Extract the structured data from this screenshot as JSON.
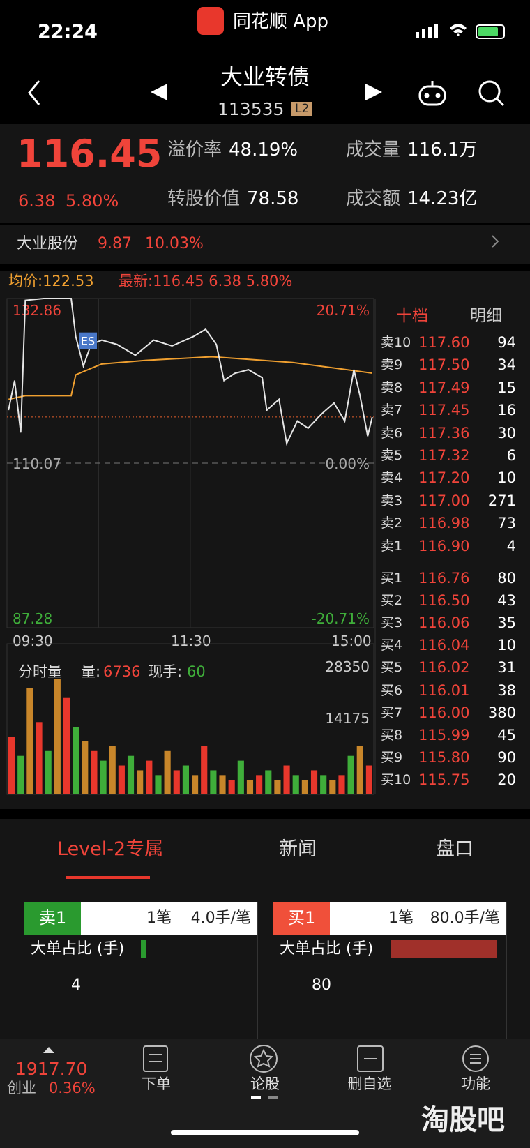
{
  "status": {
    "time": "22:24",
    "app": "同花顺 App"
  },
  "header": {
    "title": "大业转债",
    "code": "113535",
    "badge": "L2"
  },
  "quote": {
    "price": "116.45",
    "change": "6.38",
    "percent": "5.80%",
    "fields": [
      [
        "溢价率",
        "48.19%"
      ],
      [
        "成交量",
        "116.1万"
      ],
      [
        "转股价值",
        "78.58"
      ],
      [
        "成交额",
        "14.23亿"
      ]
    ]
  },
  "stock": {
    "name": "大业股份",
    "price": "9.87",
    "percent": "10.03%"
  },
  "chart": {
    "avg": "均价:122.53",
    "latest": "最新:116.45 6.38 5.80%",
    "marker": "ES",
    "ymax": 132.86,
    "ymid": 110.07,
    "ymin": 87.28,
    "pct_max": "20.71%",
    "pct_mid": "0.00%",
    "pct_min": "-20.71%",
    "times": [
      "09:30",
      "11:30",
      "15:00"
    ],
    "xlim": [
      0,
      240
    ],
    "price": {
      "color": "#e6e6e6",
      "minutes": [
        1,
        5,
        9,
        12,
        24,
        42,
        45,
        50,
        55,
        62,
        72,
        84,
        96,
        108,
        122,
        130,
        137,
        142,
        149,
        158,
        167,
        170,
        178,
        183,
        190,
        197,
        206,
        214,
        221,
        227,
        231,
        236,
        239
      ],
      "values": [
        117.4,
        121.5,
        114.3,
        132.6,
        132.86,
        132.86,
        127.6,
        123.5,
        126.5,
        127.1,
        126.5,
        125.0,
        127.1,
        126.3,
        127.6,
        128.6,
        126.5,
        121.5,
        122.5,
        123.0,
        121.9,
        117.4,
        118.9,
        112.8,
        115.9,
        114.9,
        116.9,
        118.4,
        115.9,
        123.0,
        119.4,
        113.8,
        116.45
      ]
    },
    "average": {
      "color": "#f0a030",
      "minutes": [
        1,
        12,
        42,
        45,
        62,
        91,
        134,
        187,
        239
      ],
      "values": [
        118.9,
        119.4,
        119.4,
        122.3,
        123.8,
        124.3,
        124.8,
        124.0,
        122.53
      ]
    },
    "volume": {
      "title": "分时量",
      "label": "量:",
      "last": "6736",
      "hand_label": "现手:",
      "hand": "60",
      "ymax": 28350,
      "ymid": 14175,
      "colors": [
        "#e8372c",
        "#3fae3a",
        "#c8862a"
      ],
      "values": [
        12000,
        8000,
        22000,
        15000,
        9000,
        24000,
        20000,
        14000,
        11000,
        9000,
        7000,
        10000,
        6000,
        8000,
        5000,
        7000,
        4000,
        9000,
        5000,
        6000,
        4000,
        10000,
        5000,
        4000,
        3000,
        7000,
        3000,
        4000,
        5000,
        3000,
        6000,
        4000,
        3000,
        5000,
        4000,
        3000,
        4000,
        8000,
        10000,
        6000
      ]
    }
  },
  "book": {
    "tabs": [
      "十档",
      "明细"
    ],
    "asks": [
      [
        "卖10",
        "117.60",
        "94"
      ],
      [
        "卖9",
        "117.50",
        "34"
      ],
      [
        "卖8",
        "117.49",
        "15"
      ],
      [
        "卖7",
        "117.45",
        "16"
      ],
      [
        "卖6",
        "117.36",
        "30"
      ],
      [
        "卖5",
        "117.32",
        "6"
      ],
      [
        "卖4",
        "117.20",
        "10"
      ],
      [
        "卖3",
        "117.00",
        "271"
      ],
      [
        "卖2",
        "116.98",
        "73"
      ],
      [
        "卖1",
        "116.90",
        "4"
      ]
    ],
    "bids": [
      [
        "买1",
        "116.76",
        "80"
      ],
      [
        "买2",
        "116.50",
        "43"
      ],
      [
        "买3",
        "116.06",
        "35"
      ],
      [
        "买4",
        "116.04",
        "10"
      ],
      [
        "买5",
        "116.02",
        "31"
      ],
      [
        "买6",
        "116.01",
        "38"
      ],
      [
        "买7",
        "116.00",
        "380"
      ],
      [
        "买8",
        "115.99",
        "45"
      ],
      [
        "买9",
        "115.80",
        "90"
      ],
      [
        "买10",
        "115.75",
        "20"
      ]
    ]
  },
  "tabs": [
    "Level-2专属",
    "新闻",
    "盘口"
  ],
  "cards": [
    {
      "side": "卖1",
      "count": "1笔",
      "avg": "4.0手/笔",
      "label": "大单占比 (手)",
      "value": "4"
    },
    {
      "side": "买1",
      "count": "1笔",
      "avg": "80.0手/笔",
      "label": "大单占比 (手)",
      "value": "80"
    }
  ],
  "nav": {
    "index": "1917.70",
    "index_name": "创业",
    "index_pct": "0.36%",
    "items": [
      "下单",
      "论股",
      "删自选",
      "功能"
    ]
  },
  "watermark": "淘股吧"
}
